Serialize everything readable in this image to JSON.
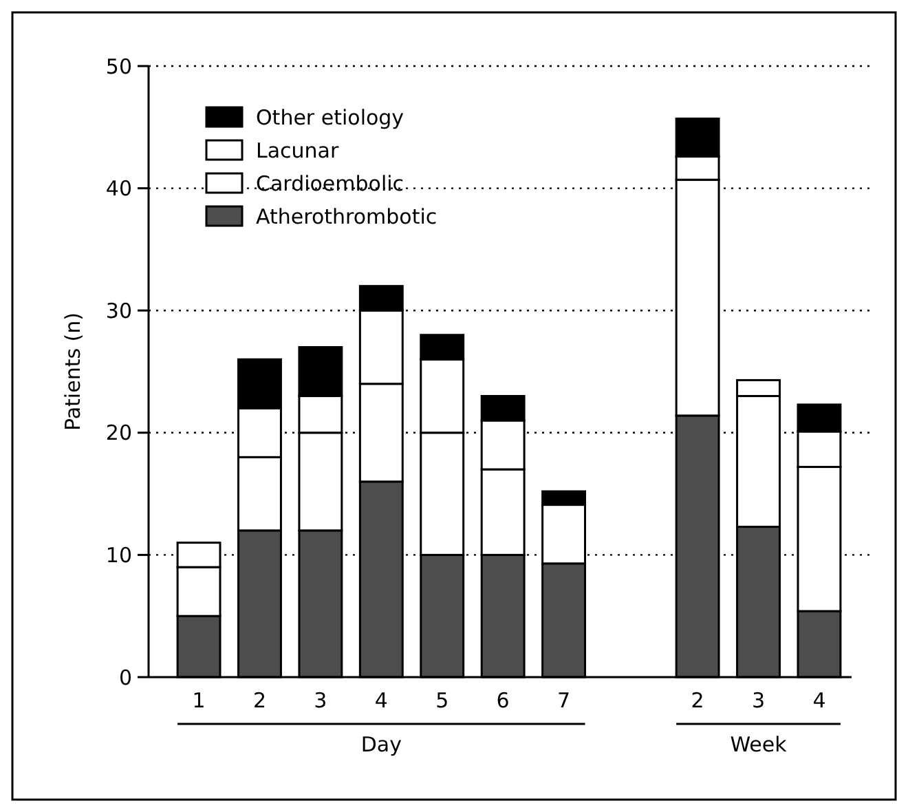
{
  "chart_data": {
    "type": "bar",
    "stacked": true,
    "ylabel": "Patients (n)",
    "categories": [
      "1",
      "2",
      "3",
      "4",
      "5",
      "6",
      "7",
      "2",
      "3",
      "4"
    ],
    "series": [
      {
        "name": "Atherothrombotic",
        "color": "#4d4d4d",
        "values": [
          5,
          12,
          12,
          16,
          10,
          10,
          9.3,
          21.4,
          12.3,
          5.4
        ]
      },
      {
        "name": "Cardioembolic",
        "color": "#ffffff",
        "values": [
          4,
          6,
          8,
          8,
          10,
          7,
          4.8,
          19.3,
          10.7,
          11.8
        ]
      },
      {
        "name": "Lacunar",
        "color": "#ffffff",
        "values": [
          2,
          4,
          3,
          6,
          6,
          4,
          0,
          1.9,
          1.3,
          2.9
        ]
      },
      {
        "name": "Other etiology",
        "color": "#000000",
        "values": [
          0,
          4,
          4,
          2,
          2,
          2,
          1.1,
          3.1,
          0,
          2.2
        ]
      }
    ],
    "ylim": [
      0,
      50
    ],
    "yticks": [
      0,
      10,
      20,
      30,
      40,
      50
    ],
    "grid": "y",
    "legend": "top left",
    "annotations": [
      "Day",
      "Week"
    ]
  }
}
